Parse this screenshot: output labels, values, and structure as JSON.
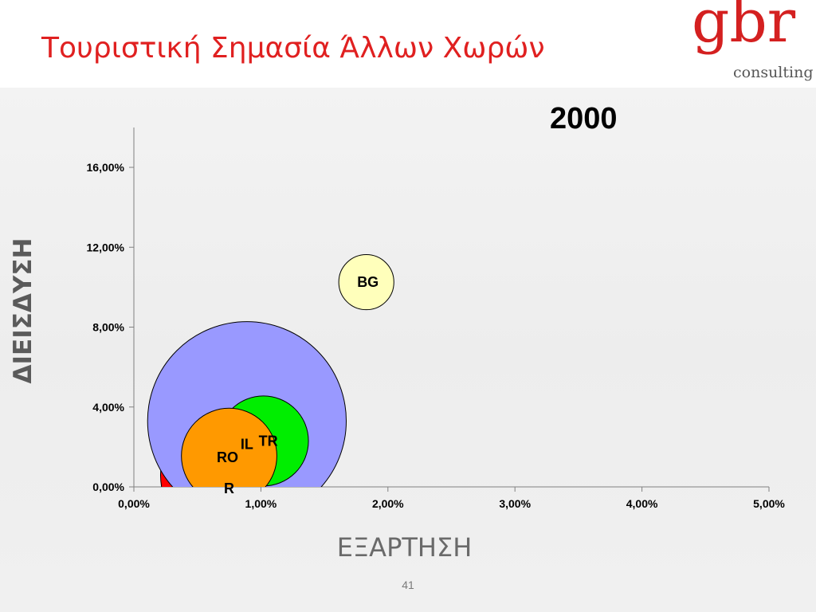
{
  "slide": {
    "title": "Τουριστική Σημασία Άλλων Χωρών",
    "page_number": "41",
    "logo": {
      "main": "gbr",
      "sub": "consulting"
    }
  },
  "chart_data": {
    "type": "bubble",
    "title": "2000",
    "xlabel": "ΕΞΑΡΤΗΣΗ",
    "ylabel": "ΔΙΕΙΣΔΥΣΗ",
    "xlim": [
      0,
      5
    ],
    "ylim": [
      0,
      18
    ],
    "x_ticks": [
      "0,00%",
      "1,00%",
      "2,00%",
      "3,00%",
      "4,00%",
      "5,00%"
    ],
    "y_ticks": [
      "0,00%",
      "4,00%",
      "8,00%",
      "12,00%",
      "16,00%"
    ],
    "x_tick_values": [
      0,
      1,
      2,
      3,
      4,
      5
    ],
    "y_tick_values": [
      0,
      4,
      8,
      12,
      16
    ],
    "bubbles": [
      {
        "label": "R",
        "x": 0.77,
        "y": 0.6,
        "size": 4.0,
        "color": "#ff0000"
      },
      {
        "label": "IL",
        "x": 0.89,
        "y": 3.3,
        "size": 7.8,
        "color": "#9999ff"
      },
      {
        "label": "TR",
        "x": 1.02,
        "y": 2.3,
        "size": 1.6,
        "color": "#00ee00"
      },
      {
        "label": "RO",
        "x": 0.75,
        "y": 1.55,
        "size": 1.8,
        "color": "#ff9900"
      },
      {
        "label": "BG",
        "x": 1.83,
        "y": 10.25,
        "size": 0.6,
        "color": "#ffffbb"
      }
    ]
  }
}
